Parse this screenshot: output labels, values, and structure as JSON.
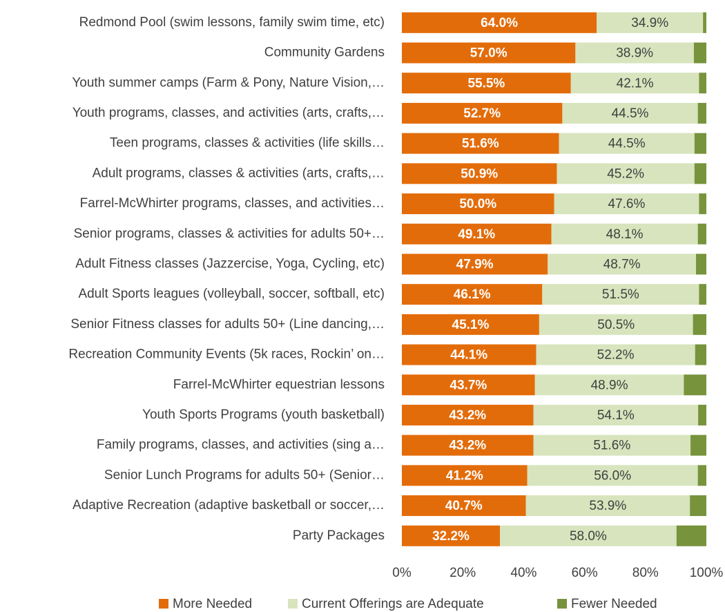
{
  "chart_data": {
    "type": "stacked-bar-horizontal",
    "categories": [
      "Redmond Pool (swim lessons, family swim time, etc)",
      "Community Gardens",
      "Youth summer camps (Farm & Pony, Nature Vision,…",
      "Youth programs, classes, and activities (arts, crafts,…",
      "Teen programs, classes & activities (life skills…",
      "Adult programs, classes & activities (arts, crafts,…",
      "Farrel-McWhirter programs, classes, and activities…",
      "Senior programs, classes & activities for adults 50+…",
      "Adult Fitness classes (Jazzercise, Yoga, Cycling, etc)",
      "Adult Sports leagues (volleyball, soccer, softball, etc)",
      "Senior Fitness classes for adults 50+ (Line dancing,…",
      "Recreation Community Events (5k races, Rockin’ on…",
      "Farrel-McWhirter equestrian lessons",
      "Youth Sports Programs (youth basketball)",
      "Family programs, classes, and activities (sing a…",
      "Senior Lunch Programs for adults 50+ (Senior…",
      "Adaptive Recreation (adaptive basketball or soccer,…",
      "Party Packages"
    ],
    "series": [
      {
        "name": "More Needed",
        "color": "#e36c0a",
        "values": [
          64.0,
          57.0,
          55.5,
          52.7,
          51.6,
          50.9,
          50.0,
          49.1,
          47.9,
          46.1,
          45.1,
          44.1,
          43.7,
          43.2,
          43.2,
          41.2,
          40.7,
          32.2
        ],
        "value_labels": [
          "64.0%",
          "57.0%",
          "55.5%",
          "52.7%",
          "51.6%",
          "50.9%",
          "50.0%",
          "49.1%",
          "47.9%",
          "46.1%",
          "45.1%",
          "44.1%",
          "43.7%",
          "43.2%",
          "43.2%",
          "41.2%",
          "40.7%",
          "32.2%"
        ]
      },
      {
        "name": "Current Offerings are Adequate",
        "color": "#d7e4bd",
        "values": [
          34.9,
          38.9,
          42.1,
          44.5,
          44.5,
          45.2,
          47.6,
          48.1,
          48.7,
          51.5,
          50.5,
          52.2,
          48.9,
          54.1,
          51.6,
          56.0,
          53.9,
          58.0
        ],
        "value_labels": [
          "34.9%",
          "38.9%",
          "42.1%",
          "44.5%",
          "44.5%",
          "45.2%",
          "47.6%",
          "48.1%",
          "48.7%",
          "51.5%",
          "50.5%",
          "52.2%",
          "48.9%",
          "54.1%",
          "51.6%",
          "56.0%",
          "53.9%",
          "58.0%"
        ]
      },
      {
        "name": "Fewer Needed",
        "color": "#77933c",
        "values": [
          1.1,
          4.1,
          2.4,
          2.8,
          3.9,
          3.9,
          2.4,
          2.8,
          3.4,
          2.4,
          4.4,
          3.7,
          7.4,
          2.7,
          5.2,
          2.8,
          5.4,
          9.8
        ]
      }
    ],
    "xlim": [
      0,
      100
    ],
    "xticks": [
      {
        "value": 0,
        "label": "0%"
      },
      {
        "value": 20,
        "label": "20%"
      },
      {
        "value": 40,
        "label": "40%"
      },
      {
        "value": 60,
        "label": "60%"
      },
      {
        "value": 80,
        "label": "80%"
      },
      {
        "value": 100,
        "label": "100%"
      }
    ],
    "legend": "bottom"
  }
}
